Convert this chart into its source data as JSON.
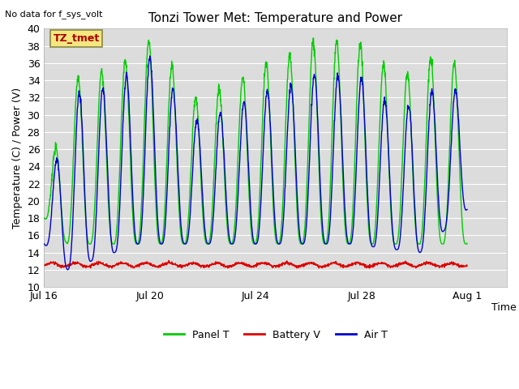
{
  "title": "Tonzi Tower Met: Temperature and Power",
  "ylabel": "Temperature (C) / Power (V)",
  "xlabel": "Time",
  "top_left_note": "No data for f_sys_volt",
  "legend_label": "TZ_tmet",
  "ylim": [
    10,
    40
  ],
  "yticks": [
    10,
    12,
    14,
    16,
    18,
    20,
    22,
    24,
    26,
    28,
    30,
    32,
    34,
    36,
    38,
    40
  ],
  "xtick_labels": [
    "Jul 16",
    "Jul 20",
    "Jul 24",
    "Jul 28",
    "Aug 1"
  ],
  "xtick_positions": [
    0,
    4,
    8,
    12,
    16
  ],
  "xlim": [
    0,
    17.5
  ],
  "panel_color": "#00cc00",
  "battery_color": "#dd0000",
  "air_color": "#0000cc",
  "plot_bg_color": "#dcdcdc",
  "fig_bg_color": "#ffffff",
  "legend_items": [
    "Panel T",
    "Battery V",
    "Air T"
  ],
  "n_days": 18,
  "pts_per_day": 96
}
